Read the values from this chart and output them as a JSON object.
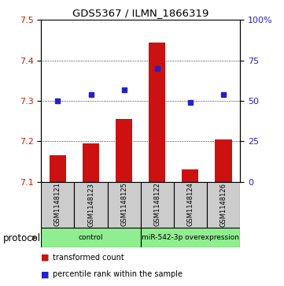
{
  "title": "GDS5367 / ILMN_1866319",
  "samples": [
    "GSM1148121",
    "GSM1148123",
    "GSM1148125",
    "GSM1148122",
    "GSM1148124",
    "GSM1148126"
  ],
  "bar_values": [
    7.165,
    7.195,
    7.255,
    7.445,
    7.13,
    7.205
  ],
  "dot_values": [
    50,
    54,
    57,
    70,
    49,
    54
  ],
  "bar_color": "#cc1111",
  "dot_color": "#2222cc",
  "ylim_left": [
    7.1,
    7.5
  ],
  "ylim_right": [
    0,
    100
  ],
  "yticks_left": [
    7.1,
    7.2,
    7.3,
    7.4,
    7.5
  ],
  "yticks_right": [
    0,
    25,
    50,
    75,
    100
  ],
  "ylabel_left_color": "#cc2200",
  "ylabel_right_color": "#2222cc",
  "group_labels": [
    "control",
    "miR-542-3p overexpression"
  ],
  "group_ranges": [
    [
      0,
      3
    ],
    [
      3,
      6
    ]
  ],
  "protocol_label": "protocol",
  "bar_bottom": 7.1,
  "sample_box_color": "#cccccc",
  "group_box_color": "#90ee90"
}
